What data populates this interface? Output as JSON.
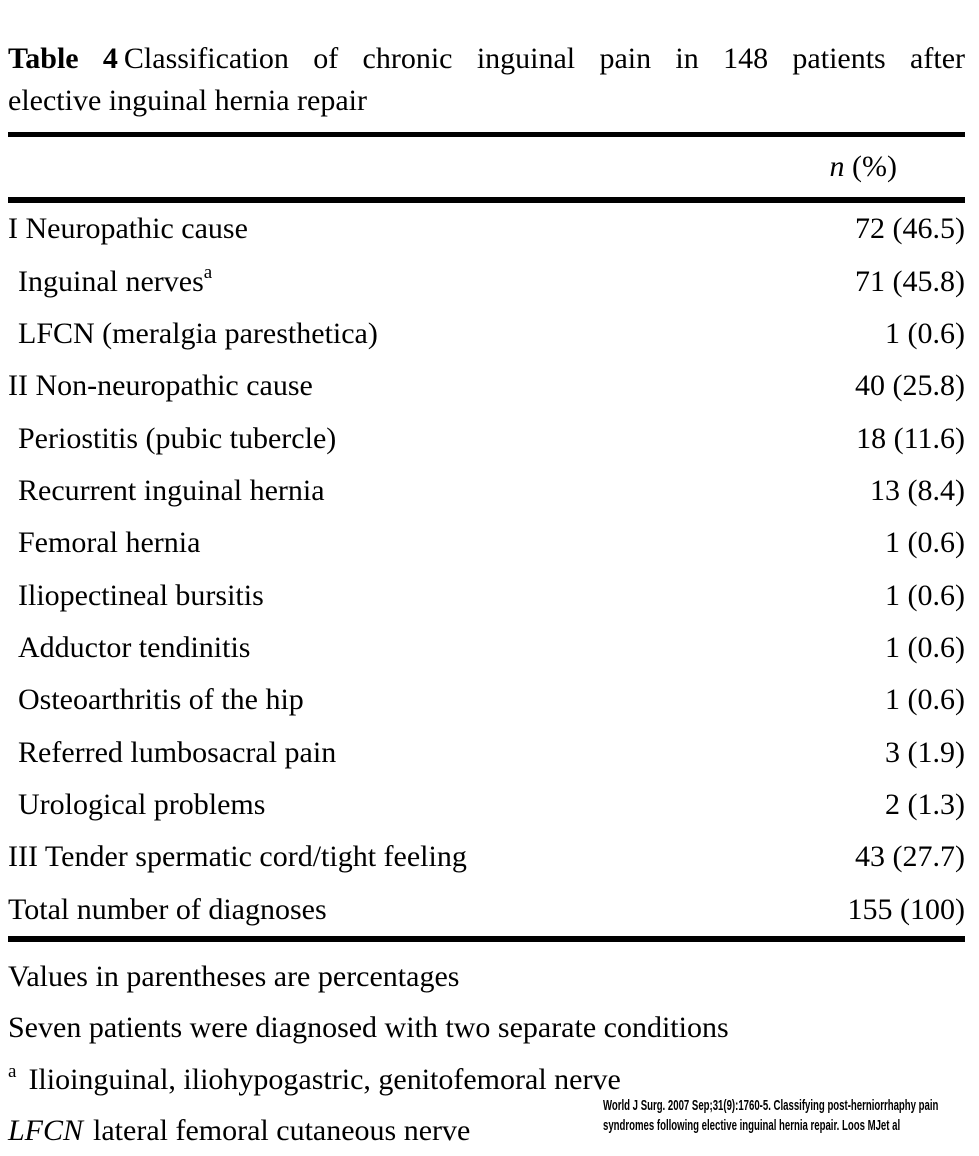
{
  "caption": {
    "label": "Table 4",
    "line1": "Classification of chronic inguinal pain in 148 patients after",
    "line2": "elective inguinal hernia repair"
  },
  "table": {
    "header_italic": "n",
    "header_rest": " (%)",
    "rows": [
      {
        "label": "I Neuropathic cause",
        "sup": "",
        "value": "72 (46.5)",
        "indent": 0
      },
      {
        "label": "Inguinal nerves",
        "sup": "a",
        "value": "71 (45.8)",
        "indent": 1
      },
      {
        "label": "LFCN (meralgia paresthetica)",
        "sup": "",
        "value": "1 (0.6)",
        "indent": 1
      },
      {
        "label": "II Non-neuropathic cause",
        "sup": "",
        "value": "40 (25.8)",
        "indent": 0
      },
      {
        "label": "Periostitis (pubic tubercle)",
        "sup": "",
        "value": "18 (11.6)",
        "indent": 1
      },
      {
        "label": "Recurrent inguinal hernia",
        "sup": "",
        "value": "13 (8.4)",
        "indent": 1
      },
      {
        "label": "Femoral hernia",
        "sup": "",
        "value": "1 (0.6)",
        "indent": 1
      },
      {
        "label": "Iliopectineal bursitis",
        "sup": "",
        "value": "1 (0.6)",
        "indent": 1
      },
      {
        "label": "Adductor tendinitis",
        "sup": "",
        "value": "1 (0.6)",
        "indent": 1
      },
      {
        "label": "Osteoarthritis of the hip",
        "sup": "",
        "value": "1 (0.6)",
        "indent": 1
      },
      {
        "label": "Referred lumbosacral pain",
        "sup": "",
        "value": "3 (1.9)",
        "indent": 1
      },
      {
        "label": "Urological problems",
        "sup": "",
        "value": "2 (1.3)",
        "indent": 1
      },
      {
        "label": "III Tender spermatic cord/tight feeling",
        "sup": "",
        "value": "43 (27.7)",
        "indent": 0
      },
      {
        "label": "Total number of diagnoses",
        "sup": "",
        "value": "155 (100)",
        "indent": 0
      }
    ]
  },
  "footnotes": {
    "line1": "Values in parentheses are percentages",
    "line2": "Seven patients were diagnosed with two separate conditions",
    "line3_sup": "a",
    "line3_text": "Ilioinguinal, iliohypogastric, genitofemoral nerve",
    "line4_em": "LFCN",
    "line4_text": "lateral femoral cutaneous nerve"
  },
  "citation": {
    "line1": "World J Surg. 2007 Sep;31(9):1760-5. Classifying post-herniorrhaphy pain",
    "line2": "syndromes following elective inguinal hernia repair. Loos MJet al"
  },
  "colors": {
    "text": "#000000",
    "background": "#ffffff",
    "rule": "#000000"
  }
}
